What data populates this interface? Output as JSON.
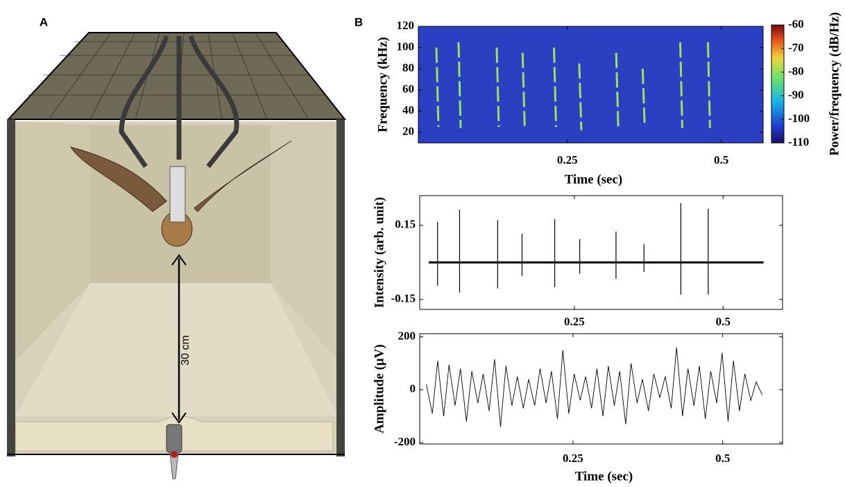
{
  "panel_a": {
    "label": "A",
    "distance": "30 cm"
  },
  "panel_b": {
    "label": "B"
  },
  "chart_data": [
    {
      "type": "spectrogram",
      "xlabel": "Time (sec)",
      "ylabel": "Frequency  (kHz)",
      "xlim": [
        0.008,
        0.568
      ],
      "xticks": [
        0.25,
        0.5
      ],
      "ylim": [
        10,
        120
      ],
      "yticks": [
        20,
        40,
        60,
        80,
        100,
        120
      ],
      "background_color": "#2b3fc2",
      "call_color": "#9be35a",
      "calls": [
        {
          "t": 0.039,
          "f_low": 25,
          "f_high": 100
        },
        {
          "t": 0.075,
          "f_low": 24,
          "f_high": 105
        },
        {
          "t": 0.137,
          "f_low": 25,
          "f_high": 100
        },
        {
          "t": 0.179,
          "f_low": 26,
          "f_high": 95
        },
        {
          "t": 0.23,
          "f_low": 25,
          "f_high": 100
        },
        {
          "t": 0.271,
          "f_low": 22,
          "f_high": 85
        },
        {
          "t": 0.331,
          "f_low": 25,
          "f_high": 95
        },
        {
          "t": 0.374,
          "f_low": 25,
          "f_high": 80
        },
        {
          "t": 0.435,
          "f_low": 24,
          "f_high": 105
        },
        {
          "t": 0.48,
          "f_low": 24,
          "f_high": 105
        }
      ],
      "colorbar": {
        "label": "Power/frequency (dB/Hz)",
        "clim": [
          -110,
          -60
        ],
        "cticks": [
          -110,
          -100,
          -90,
          -80,
          -70,
          -60
        ]
      }
    },
    {
      "type": "pulses",
      "xlabel": null,
      "ylabel": "Intensity  (arb. unit)",
      "xlim": [
        -0.01,
        0.6
      ],
      "xticks": [
        0.25,
        0.5
      ],
      "ylim": [
        -0.19,
        0.27
      ],
      "yticks": [
        -0.15,
        0.15
      ],
      "x_range": [
        0.005,
        0.568
      ],
      "color": "#000000",
      "pulses": [
        {
          "t": 0.02,
          "peak": 0.164,
          "trough": -0.094
        },
        {
          "t": 0.057,
          "peak": 0.214,
          "trough": -0.122
        },
        {
          "t": 0.121,
          "peak": 0.172,
          "trough": -0.105
        },
        {
          "t": 0.162,
          "peak": 0.116,
          "trough": -0.055
        },
        {
          "t": 0.217,
          "peak": 0.175,
          "trough": -0.1
        },
        {
          "t": 0.259,
          "peak": 0.094,
          "trough": -0.046
        },
        {
          "t": 0.32,
          "peak": 0.125,
          "trough": -0.066
        },
        {
          "t": 0.367,
          "peak": 0.074,
          "trough": -0.038
        },
        {
          "t": 0.429,
          "peak": 0.24,
          "trough": -0.13
        },
        {
          "t": 0.475,
          "peak": 0.217,
          "trough": -0.13
        }
      ]
    },
    {
      "type": "line",
      "xlabel": "Time (sec)",
      "ylabel": "Amplitude (μV)",
      "xlim": [
        -0.006,
        0.6
      ],
      "xticks": [
        0.25,
        0.5
      ],
      "ylim": [
        -205,
        212
      ],
      "yticks": [
        -200,
        0,
        200
      ],
      "color": "#000000",
      "x": [
        0.005,
        0.015,
        0.024,
        0.034,
        0.043,
        0.053,
        0.062,
        0.072,
        0.081,
        0.091,
        0.1,
        0.11,
        0.119,
        0.129,
        0.138,
        0.148,
        0.157,
        0.167,
        0.176,
        0.186,
        0.195,
        0.205,
        0.214,
        0.224,
        0.233,
        0.243,
        0.252,
        0.262,
        0.271,
        0.281,
        0.29,
        0.3,
        0.309,
        0.319,
        0.328,
        0.338,
        0.347,
        0.357,
        0.366,
        0.376,
        0.385,
        0.395,
        0.404,
        0.414,
        0.423,
        0.433,
        0.442,
        0.452,
        0.461,
        0.471,
        0.48,
        0.49,
        0.499,
        0.509,
        0.518,
        0.528,
        0.537,
        0.547,
        0.556,
        0.566
      ],
      "values": [
        20,
        -90,
        110,
        -100,
        95,
        -60,
        80,
        -120,
        70,
        -50,
        60,
        -80,
        115,
        -140,
        90,
        -60,
        50,
        -70,
        40,
        -60,
        80,
        -50,
        70,
        -110,
        150,
        -90,
        60,
        -40,
        50,
        -70,
        80,
        -100,
        90,
        -60,
        70,
        -130,
        100,
        -50,
        40,
        -80,
        60,
        -30,
        50,
        -70,
        160,
        -100,
        80,
        -60,
        90,
        -110,
        70,
        -50,
        140,
        -120,
        110,
        -80,
        60,
        -40,
        30,
        -20
      ]
    }
  ]
}
